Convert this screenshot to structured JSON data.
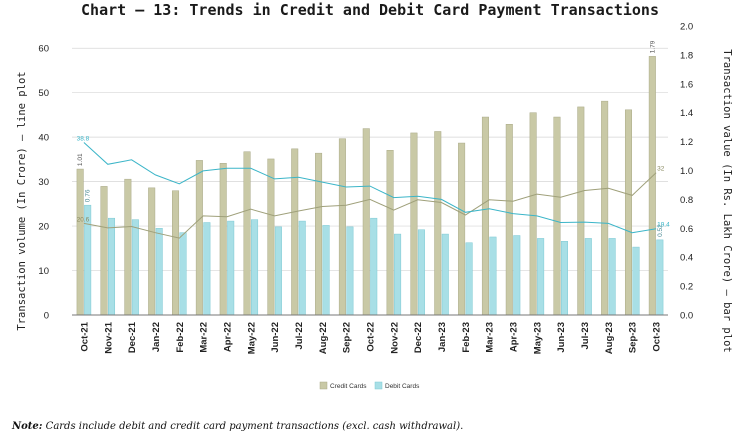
{
  "colors": {
    "credit": "#c9c9a6",
    "credit_edge": "#a9a987",
    "debit": "#a8dfe6",
    "debit_edge": "#7cc9d3",
    "credit_line": "#9fa07a",
    "debit_line": "#3bb5c8",
    "grid": "#d6d6d6",
    "axis": "#777777"
  },
  "note": {
    "prefix": "Note:",
    "text": " Cards include debit and credit card payment transactions (excl. cash withdrawal)."
  },
  "chart_data": {
    "type": "bar+line (dual axis)",
    "title": "Chart – 13: Trends in Credit and Debit Card Payment Transactions",
    "ylabel_left": "Transaction volume (In Crore) – line plot",
    "ylabel_right": "Transaction value (In Rs. Lakh Crore) – bar plot",
    "ylim_left": [
      0,
      65
    ],
    "yticks_left": [
      0,
      10,
      20,
      30,
      40,
      50,
      60
    ],
    "ylim_right": [
      0,
      2.0
    ],
    "yticks_right": [
      "0.0",
      "0.2",
      "0.4",
      "0.6",
      "0.8",
      "1.0",
      "1.2",
      "1.4",
      "1.6",
      "1.8",
      "2.0"
    ],
    "categories": [
      "Oct-21",
      "Nov-21",
      "Dec-21",
      "Jan-22",
      "Feb-22",
      "Mar-22",
      "Apr-22",
      "May-22",
      "Jun-22",
      "Jul-22",
      "Aug-22",
      "Sep-22",
      "Oct-22",
      "Nov-22",
      "Dec-22",
      "Jan-23",
      "Feb-23",
      "Mar-23",
      "Apr-23",
      "May-23",
      "Jun-23",
      "Jul-23",
      "Aug-23",
      "Sep-23",
      "Oct-23"
    ],
    "bar_series": [
      {
        "name": "Credit Cards",
        "axis": "right",
        "values": [
          1.01,
          0.89,
          0.94,
          0.88,
          0.86,
          1.07,
          1.05,
          1.13,
          1.08,
          1.15,
          1.12,
          1.22,
          1.29,
          1.14,
          1.26,
          1.27,
          1.19,
          1.37,
          1.32,
          1.4,
          1.37,
          1.44,
          1.48,
          1.42,
          1.79
        ]
      },
      {
        "name": "Debit Cards",
        "axis": "right",
        "values": [
          0.76,
          0.67,
          0.66,
          0.6,
          0.57,
          0.64,
          0.65,
          0.66,
          0.61,
          0.65,
          0.62,
          0.61,
          0.67,
          0.56,
          0.59,
          0.56,
          0.5,
          0.54,
          0.55,
          0.53,
          0.51,
          0.53,
          0.53,
          0.47,
          0.52
        ]
      }
    ],
    "line_series": [
      {
        "name": "Credit Card volume",
        "axis": "left",
        "values": [
          20.6,
          19.6,
          19.9,
          18.5,
          17.3,
          22.3,
          22.1,
          23.8,
          22.3,
          23.4,
          24.4,
          24.7,
          26.0,
          23.6,
          25.9,
          25.3,
          22.5,
          25.9,
          25.6,
          27.2,
          26.5,
          28.0,
          28.5,
          26.9,
          32.0
        ]
      },
      {
        "name": "Debit Card volume",
        "axis": "left",
        "values": [
          38.8,
          33.9,
          34.9,
          31.5,
          29.5,
          32.4,
          33.0,
          33.0,
          30.6,
          31.0,
          29.9,
          28.8,
          29.0,
          26.4,
          26.7,
          26.0,
          23.1,
          23.9,
          22.8,
          22.3,
          20.8,
          20.9,
          20.6,
          18.5,
          19.4
        ]
      }
    ],
    "annotations": [
      {
        "text": "1.01",
        "series": "Credit Cards",
        "category": "Oct-21"
      },
      {
        "text": "0.76",
        "series": "Debit Cards",
        "category": "Oct-21"
      },
      {
        "text": "1.79",
        "series": "Credit Cards",
        "category": "Oct-23"
      },
      {
        "text": "0.52",
        "series": "Debit Cards",
        "category": "Oct-23"
      },
      {
        "text": "38.8",
        "series": "Debit Card volume",
        "category": "Oct-21"
      },
      {
        "text": "20.6",
        "series": "Credit Card volume",
        "category": "Oct-21"
      },
      {
        "text": "32",
        "series": "Credit Card volume",
        "category": "Oct-23"
      },
      {
        "text": "19.4",
        "series": "Debit Card volume",
        "category": "Oct-23"
      }
    ],
    "legend": [
      "Credit Cards",
      "Debit Cards"
    ],
    "legend_position": "bottom-center",
    "grid": true
  }
}
